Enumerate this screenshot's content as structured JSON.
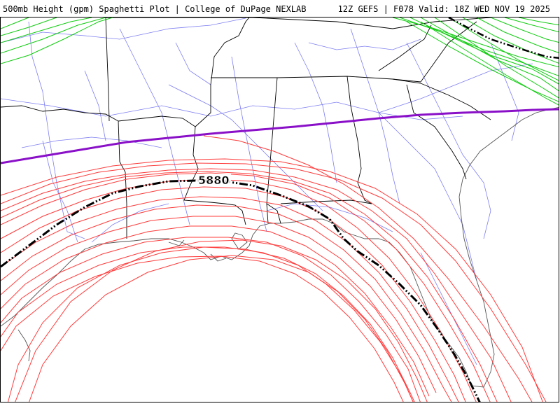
{
  "header": {
    "title_left": "500mb Height (gpm) Spaghetti Plot | College of DuPage NEXLAB",
    "title_right": "12Z GEFS | F078 Valid: 18Z WED NOV 19 2025"
  },
  "map": {
    "contour_label": "5880",
    "colors": {
      "red_members": "#ff3b3b",
      "green_members": "#11cc11",
      "purple_contour": "#8a10c8",
      "mean_contour": "#000000",
      "roads": "#6f6ff0",
      "borders": "#000000",
      "coast": "#555555"
    }
  }
}
